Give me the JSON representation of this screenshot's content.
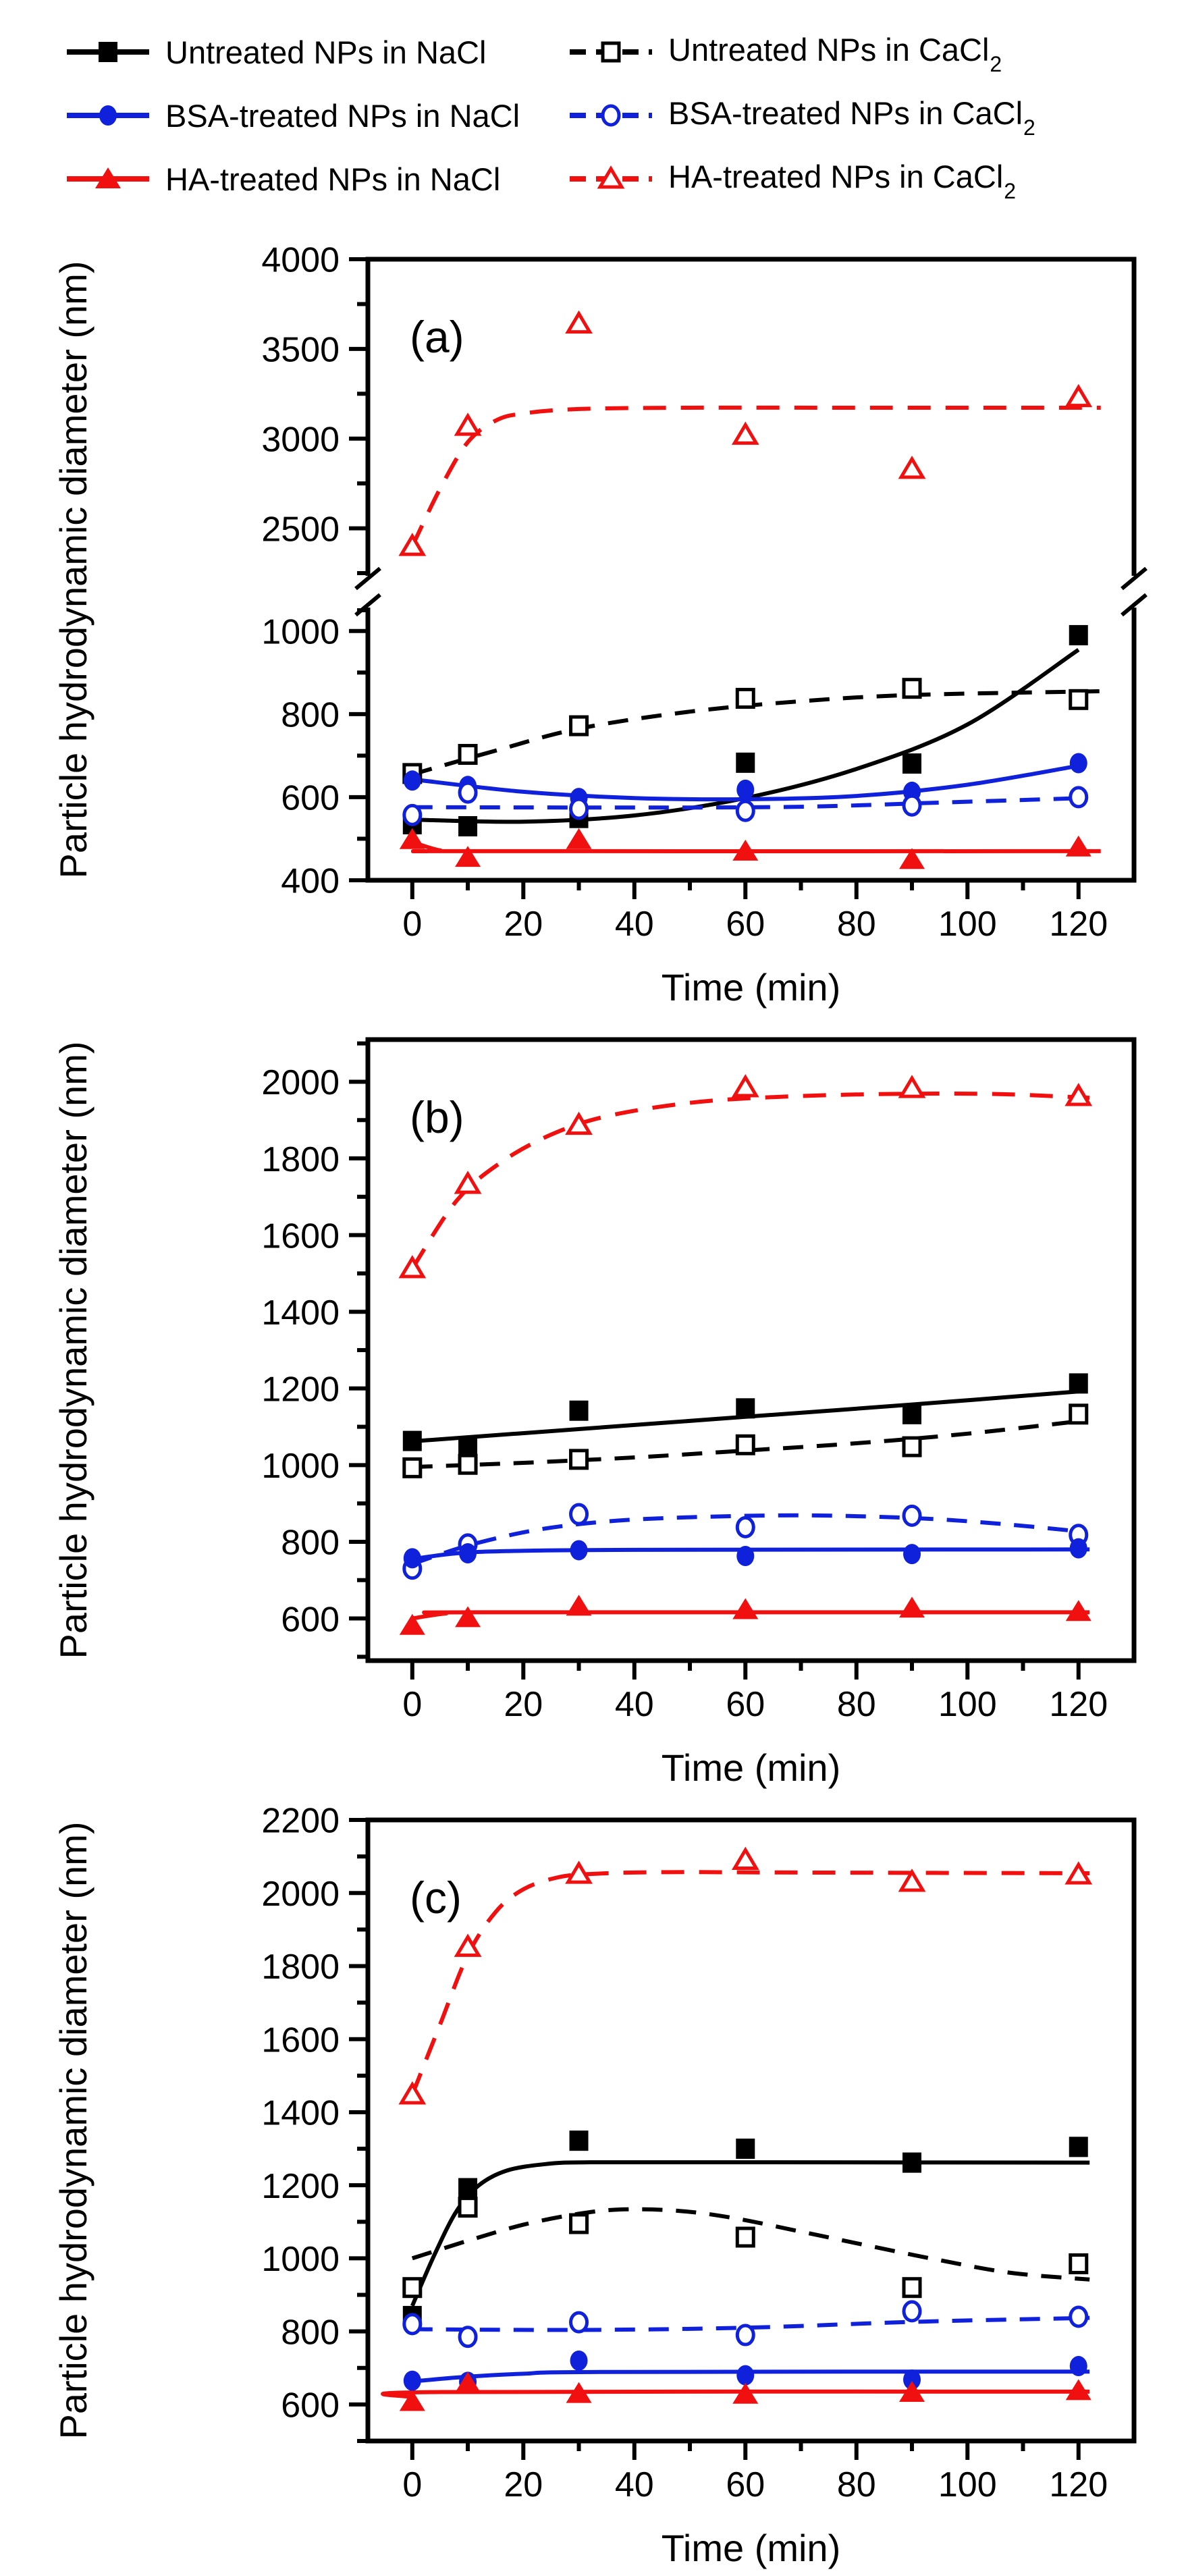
{
  "colors": {
    "black": "#000000",
    "blue": "#1021DC",
    "red": "#F01010",
    "white": "#ffffff"
  },
  "legend": [
    {
      "key": "untreated-nacl",
      "label": "Untreated NPs in NaCl",
      "sub": "",
      "color": "black",
      "marker": "square",
      "filled": true,
      "line": "solid"
    },
    {
      "key": "untreated-cacl2",
      "label": "Untreated NPs in CaCl",
      "sub": "2",
      "color": "black",
      "marker": "square",
      "filled": false,
      "line": "dashed"
    },
    {
      "key": "bsa-nacl",
      "label": "BSA-treated NPs in NaCl",
      "sub": "",
      "color": "blue",
      "marker": "circle",
      "filled": true,
      "line": "solid"
    },
    {
      "key": "bsa-cacl2",
      "label": "BSA-treated NPs in CaCl",
      "sub": "2",
      "color": "blue",
      "marker": "circle",
      "filled": false,
      "line": "dashed"
    },
    {
      "key": "ha-nacl",
      "label": "HA-treated NPs in NaCl",
      "sub": "",
      "color": "red",
      "marker": "triangle",
      "filled": true,
      "line": "solid"
    },
    {
      "key": "ha-cacl2",
      "label": "HA-treated NPs in CaCl",
      "sub": "2",
      "color": "red",
      "marker": "triangle",
      "filled": false,
      "line": "dashed"
    }
  ],
  "chart_data": [
    {
      "panel": "(a)",
      "type": "line",
      "title": "",
      "xlabel": "Time (min)",
      "ylabel": "Particle hydrodynamic diameter (nm)",
      "x": [
        0,
        10,
        30,
        60,
        90,
        120
      ],
      "axis": {
        "x_range": [
          -8,
          130
        ],
        "x_majors": [
          0,
          20,
          40,
          60,
          80,
          100,
          120
        ],
        "x_minors": [
          10,
          30,
          50,
          70,
          90,
          110
        ],
        "y_broken": true,
        "y_segments": [
          {
            "range": [
              2250,
              4000
            ],
            "majors": [
              2500,
              3000,
              3500,
              4000
            ],
            "minors": [
              2250,
              2750,
              3250,
              3750
            ]
          },
          {
            "range": [
              400,
              1050
            ],
            "majors": [
              400,
              600,
              800,
              1000
            ],
            "minors": [
              500,
              700,
              900,
              1050
            ]
          }
        ]
      },
      "series": [
        {
          "key": "ha-cacl2",
          "values": [
            2400,
            3070,
            3640,
            3020,
            2830,
            3230
          ],
          "trend": [
            [
              0,
              2400
            ],
            [
              5,
              2720
            ],
            [
              10,
              2980
            ],
            [
              15,
              3100
            ],
            [
              20,
              3140
            ],
            [
              30,
              3165
            ],
            [
              50,
              3172
            ],
            [
              80,
              3172
            ],
            [
              124,
              3172
            ]
          ]
        },
        {
          "key": "untreated-cacl2",
          "values": [
            657,
            703,
            772,
            838,
            862,
            835
          ],
          "trend": [
            [
              0,
              655
            ],
            [
              15,
              712
            ],
            [
              30,
              765
            ],
            [
              50,
              806
            ],
            [
              70,
              831
            ],
            [
              90,
              846
            ],
            [
              124,
              855
            ]
          ]
        },
        {
          "key": "untreated-nacl",
          "values": [
            535,
            530,
            550,
            683,
            681,
            990
          ],
          "trend": [
            [
              0,
              546
            ],
            [
              20,
              541
            ],
            [
              40,
              556
            ],
            [
              60,
              598
            ],
            [
              80,
              668
            ],
            [
              100,
              775
            ],
            [
              120,
              955
            ]
          ]
        },
        {
          "key": "bsa-nacl",
          "values": [
            640,
            627,
            598,
            618,
            613,
            682
          ],
          "trend": [
            [
              0,
              643
            ],
            [
              20,
              613
            ],
            [
              40,
              598
            ],
            [
              60,
              595
            ],
            [
              80,
              603
            ],
            [
              100,
              630
            ],
            [
              121,
              678
            ]
          ]
        },
        {
          "key": "bsa-cacl2",
          "values": [
            557,
            611,
            572,
            567,
            580,
            600
          ],
          "trend": [
            [
              0,
              576
            ],
            [
              40,
              575
            ],
            [
              70,
              577
            ],
            [
              95,
              587
            ],
            [
              121,
              598
            ]
          ]
        },
        {
          "key": "ha-nacl",
          "values": [
            498,
            455,
            498,
            470,
            450,
            480
          ],
          "trend": [
            [
              0,
              492
            ],
            [
              5,
              472
            ],
            [
              10,
              470
            ],
            [
              124,
              470
            ]
          ]
        }
      ]
    },
    {
      "panel": "(b)",
      "type": "line",
      "title": "",
      "xlabel": "Time (min)",
      "ylabel": "Particle hydrodynamic diameter (nm)",
      "x": [
        0,
        10,
        30,
        60,
        90,
        120
      ],
      "axis": {
        "x_range": [
          -8,
          130
        ],
        "x_majors": [
          0,
          20,
          40,
          60,
          80,
          100,
          120
        ],
        "x_minors": [
          10,
          30,
          50,
          70,
          90,
          110
        ],
        "y_broken": false,
        "y_segments": [
          {
            "range": [
              490,
              2110
            ],
            "majors": [
              600,
              800,
              1000,
              1200,
              1400,
              1600,
              1800,
              2000
            ],
            "minors": [
              500,
              700,
              900,
              1100,
              1300,
              1500,
              1700,
              1900,
              2100
            ]
          }
        ]
      },
      "series": [
        {
          "key": "ha-cacl2",
          "values": [
            1513,
            1733,
            1887,
            1985,
            1983,
            1962
          ],
          "trend": [
            [
              0,
              1513
            ],
            [
              8,
              1690
            ],
            [
              16,
              1790
            ],
            [
              25,
              1862
            ],
            [
              35,
              1910
            ],
            [
              50,
              1945
            ],
            [
              65,
              1960
            ],
            [
              85,
              1968
            ],
            [
              105,
              1968
            ],
            [
              122,
              1958
            ]
          ]
        },
        {
          "key": "untreated-nacl",
          "values": [
            1063,
            1045,
            1142,
            1148,
            1133,
            1213
          ],
          "trend": [
            [
              0,
              1062
            ],
            [
              30,
              1094
            ],
            [
              60,
              1126
            ],
            [
              90,
              1158
            ],
            [
              120,
              1192
            ]
          ]
        },
        {
          "key": "untreated-cacl2",
          "values": [
            993,
            1002,
            1015,
            1053,
            1048,
            1133
          ],
          "trend": [
            [
              0,
              995
            ],
            [
              20,
              1006
            ],
            [
              40,
              1020
            ],
            [
              60,
              1038
            ],
            [
              80,
              1057
            ],
            [
              100,
              1082
            ],
            [
              121,
              1116
            ]
          ]
        },
        {
          "key": "bsa-cacl2",
          "values": [
            730,
            793,
            872,
            838,
            868,
            818
          ],
          "trend": [
            [
              0,
              742
            ],
            [
              10,
              790
            ],
            [
              22,
              830
            ],
            [
              35,
              853
            ],
            [
              50,
              864
            ],
            [
              70,
              869
            ],
            [
              90,
              862
            ],
            [
              105,
              848
            ],
            [
              121,
              826
            ]
          ]
        },
        {
          "key": "bsa-nacl",
          "values": [
            757,
            770,
            778,
            763,
            768,
            783
          ],
          "trend": [
            [
              0,
              755
            ],
            [
              8,
              770
            ],
            [
              18,
              776
            ],
            [
              40,
              779
            ],
            [
              122,
              780
            ]
          ]
        },
        {
          "key": "ha-nacl",
          "values": [
            582,
            602,
            632,
            623,
            627,
            618
          ],
          "trend": [
            [
              0,
              600
            ],
            [
              6,
              613
            ],
            [
              12,
              616
            ],
            [
              122,
              616
            ]
          ]
        }
      ]
    },
    {
      "panel": "(c)",
      "type": "line",
      "title": "",
      "xlabel": "Time (min)",
      "ylabel": "Particle hydrodynamic diameter (nm)",
      "x": [
        0,
        10,
        30,
        60,
        90,
        120
      ],
      "axis": {
        "x_range": [
          -8,
          130
        ],
        "x_majors": [
          0,
          20,
          40,
          60,
          80,
          100,
          120
        ],
        "x_minors": [
          10,
          30,
          50,
          70,
          90,
          110
        ],
        "y_broken": false,
        "y_segments": [
          {
            "range": [
              500,
              2200
            ],
            "majors": [
              600,
              800,
              1000,
              1200,
              1400,
              1600,
              1800,
              2000,
              2200
            ],
            "minors": [
              500,
              700,
              900,
              1100,
              1300,
              1500,
              1700,
              1900,
              2100
            ]
          }
        ]
      },
      "series": [
        {
          "key": "ha-cacl2",
          "values": [
            1448,
            1852,
            2052,
            2090,
            2030,
            2050
          ],
          "trend": [
            [
              0,
              1448
            ],
            [
              5,
              1640
            ],
            [
              10,
              1830
            ],
            [
              15,
              1948
            ],
            [
              20,
              2010
            ],
            [
              26,
              2042
            ],
            [
              32,
              2052
            ],
            [
              45,
              2057
            ],
            [
              70,
              2056
            ],
            [
              122,
              2054
            ]
          ]
        },
        {
          "key": "untreated-nacl",
          "values": [
            842,
            1192,
            1322,
            1300,
            1262,
            1305
          ],
          "trend": [
            [
              0,
              870
            ],
            [
              4,
              1010
            ],
            [
              8,
              1130
            ],
            [
              12,
              1200
            ],
            [
              17,
              1240
            ],
            [
              24,
              1258
            ],
            [
              32,
              1263
            ],
            [
              60,
              1263
            ],
            [
              122,
              1262
            ]
          ]
        },
        {
          "key": "untreated-cacl2",
          "values": [
            920,
            1140,
            1095,
            1058,
            920,
            985
          ],
          "trend": [
            [
              0,
              1000
            ],
            [
              10,
              1048
            ],
            [
              20,
              1092
            ],
            [
              30,
              1122
            ],
            [
              38,
              1134
            ],
            [
              48,
              1130
            ],
            [
              58,
              1110
            ],
            [
              70,
              1073
            ],
            [
              82,
              1035
            ],
            [
              95,
              995
            ],
            [
              108,
              960
            ],
            [
              122,
              942
            ]
          ]
        },
        {
          "key": "bsa-cacl2",
          "values": [
            820,
            785,
            825,
            790,
            855,
            840
          ],
          "trend": [
            [
              0,
              806
            ],
            [
              30,
              804
            ],
            [
              60,
              810
            ],
            [
              90,
              826
            ],
            [
              122,
              837
            ]
          ]
        },
        {
          "key": "bsa-nacl",
          "values": [
            665,
            662,
            720,
            680,
            668,
            705
          ],
          "trend": [
            [
              0,
              663
            ],
            [
              10,
              676
            ],
            [
              20,
              684
            ],
            [
              35,
              689
            ],
            [
              122,
              690
            ]
          ]
        },
        {
          "key": "ha-nacl",
          "values": [
            608,
            658,
            630,
            628,
            633,
            638
          ],
          "trend": [
            [
              0,
              620
            ],
            [
              5,
              634
            ],
            [
              122,
              635
            ]
          ]
        }
      ]
    }
  ]
}
